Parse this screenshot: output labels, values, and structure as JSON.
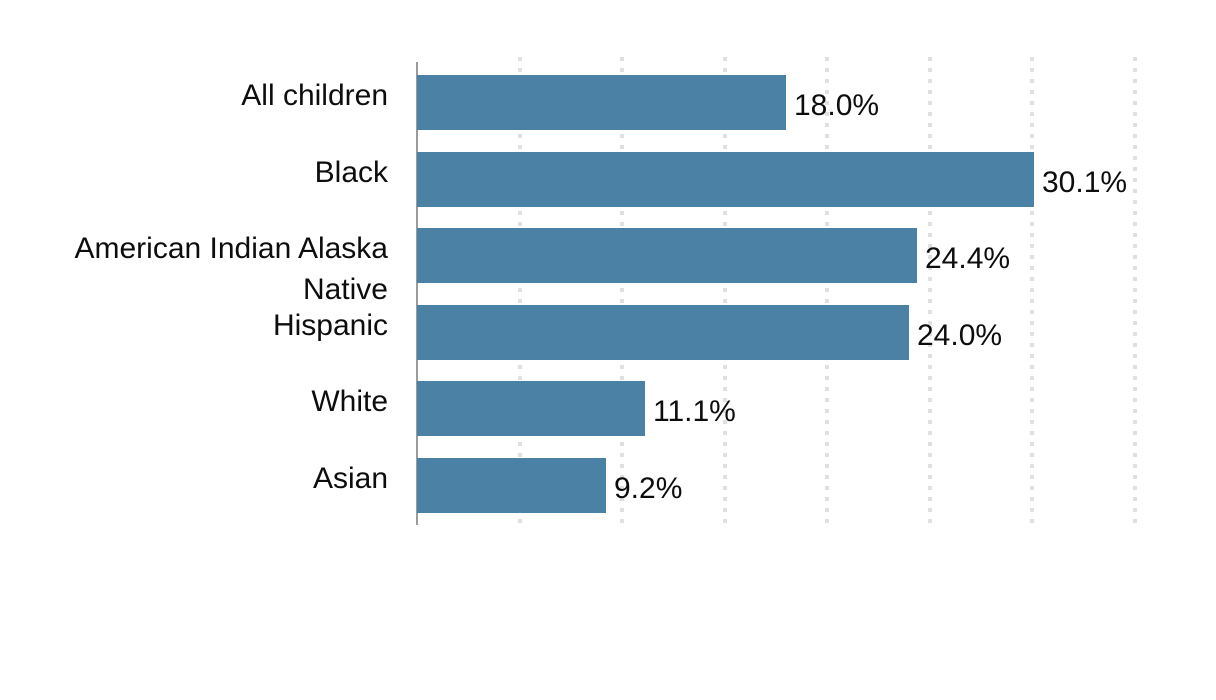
{
  "chart_data": {
    "type": "bar",
    "orientation": "horizontal",
    "title": "",
    "xlabel": "",
    "ylabel": "",
    "categories": [
      "All children",
      "Black",
      "American Indian Alaska Native",
      "Hispanic",
      "White",
      "Asian"
    ],
    "values": [
      18.0,
      30.1,
      24.4,
      24.0,
      11.1,
      9.2
    ],
    "value_labels": [
      "18.0%",
      "30.1%",
      "24.4%",
      "24.0%",
      "11.1%",
      "9.2%"
    ],
    "xlim": [
      0,
      35
    ],
    "gridline_step": 5,
    "grid": "vertical-dotted",
    "legend_position": "none",
    "colors": {
      "bar": "#4a81a5",
      "grid": "#e0e0e0",
      "axis": "#9b9b9b",
      "text": "#0d0d0d"
    }
  }
}
